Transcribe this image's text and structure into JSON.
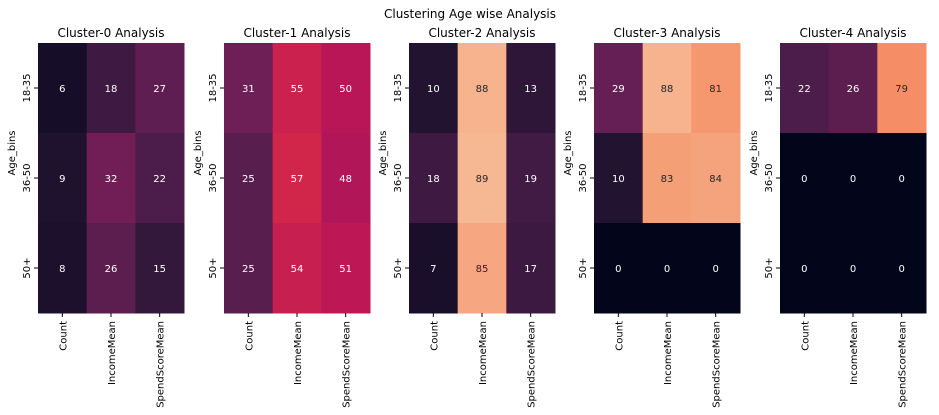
{
  "figure": {
    "title": "Clustering Age wise Analysis",
    "colorscale": {
      "name": "rocket",
      "stops": [
        "#03051a",
        "#221331",
        "#451c47",
        "#691f55",
        "#921c5b",
        "#b91657",
        "#dd2c45",
        "#f06043",
        "#f5936a",
        "#f6bb97",
        "#faebdd"
      ],
      "vmin": 0,
      "vmax": 100,
      "text_dark": "#262626",
      "text_light": "#ffffff"
    }
  },
  "chart_data": [
    {
      "type": "heatmap",
      "title": "Cluster-0 Analysis",
      "ylabel": "Age_bins",
      "xlabel": "",
      "y_categories": [
        "18-35",
        "36-50",
        "50+"
      ],
      "x_categories": [
        "Count",
        "IncomeMean",
        "SpendScoreMean"
      ],
      "values": [
        [
          6,
          18,
          27
        ],
        [
          9,
          32,
          22
        ],
        [
          8,
          26,
          15
        ]
      ]
    },
    {
      "type": "heatmap",
      "title": "Cluster-1 Analysis",
      "ylabel": "Age_bins",
      "xlabel": "",
      "y_categories": [
        "18-35",
        "36-50",
        "50+"
      ],
      "x_categories": [
        "Count",
        "IncomeMean",
        "SpendScoreMean"
      ],
      "values": [
        [
          31,
          55,
          50
        ],
        [
          25,
          57,
          48
        ],
        [
          25,
          54,
          51
        ]
      ]
    },
    {
      "type": "heatmap",
      "title": "Cluster-2 Analysis",
      "ylabel": "Age_bins",
      "xlabel": "",
      "y_categories": [
        "18-35",
        "36-50",
        "50+"
      ],
      "x_categories": [
        "Count",
        "IncomeMean",
        "SpendScoreMean"
      ],
      "values": [
        [
          10,
          88,
          13
        ],
        [
          18,
          89,
          19
        ],
        [
          7,
          85,
          17
        ]
      ]
    },
    {
      "type": "heatmap",
      "title": "Cluster-3 Analysis",
      "ylabel": "Age_bins",
      "xlabel": "",
      "y_categories": [
        "18-35",
        "36-50",
        "50+"
      ],
      "x_categories": [
        "Count",
        "IncomeMean",
        "SpendScoreMean"
      ],
      "values": [
        [
          29,
          88,
          81
        ],
        [
          10,
          83,
          84
        ],
        [
          0,
          0,
          0
        ]
      ]
    },
    {
      "type": "heatmap",
      "title": "Cluster-4 Analysis",
      "ylabel": "Age_bins",
      "xlabel": "",
      "y_categories": [
        "18-35",
        "36-50",
        "50+"
      ],
      "x_categories": [
        "Count",
        "IncomeMean",
        "SpendScoreMean"
      ],
      "values": [
        [
          22,
          26,
          79
        ],
        [
          0,
          0,
          0
        ],
        [
          0,
          0,
          0
        ]
      ]
    }
  ]
}
